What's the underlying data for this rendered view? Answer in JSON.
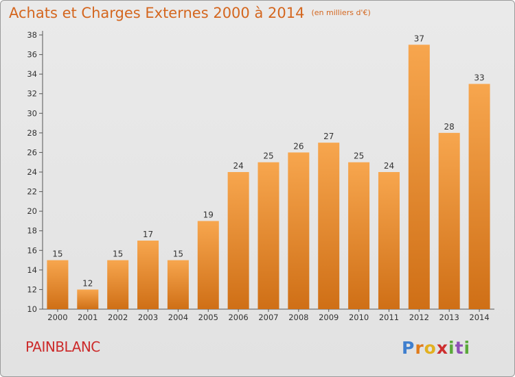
{
  "title": "Achats et Charges Externes 2000 à 2014",
  "subtitle": "(en milliers d'€)",
  "commune": "PAINBLANC",
  "logo": {
    "p": "P",
    "r": "r",
    "o": "o",
    "x": "x",
    "i": "i",
    "t": "t",
    "i2": "i"
  },
  "colors": {
    "bar": "#f0922f",
    "title": "#d4661e",
    "commune": "#cc2a2a"
  },
  "chart_data": {
    "type": "bar",
    "categories": [
      "2000",
      "2001",
      "2002",
      "2003",
      "2004",
      "2005",
      "2006",
      "2007",
      "2008",
      "2009",
      "2010",
      "2011",
      "2012",
      "2013",
      "2014"
    ],
    "values": [
      15,
      12,
      15,
      17,
      15,
      19,
      24,
      25,
      26,
      27,
      25,
      24,
      37,
      28,
      33
    ],
    "ylim": [
      10,
      38
    ],
    "yticks": [
      10,
      12,
      14,
      16,
      18,
      20,
      22,
      24,
      26,
      28,
      30,
      32,
      34,
      36,
      38
    ],
    "xlabel": "",
    "ylabel": "",
    "grid": false,
    "data_labels": true
  }
}
